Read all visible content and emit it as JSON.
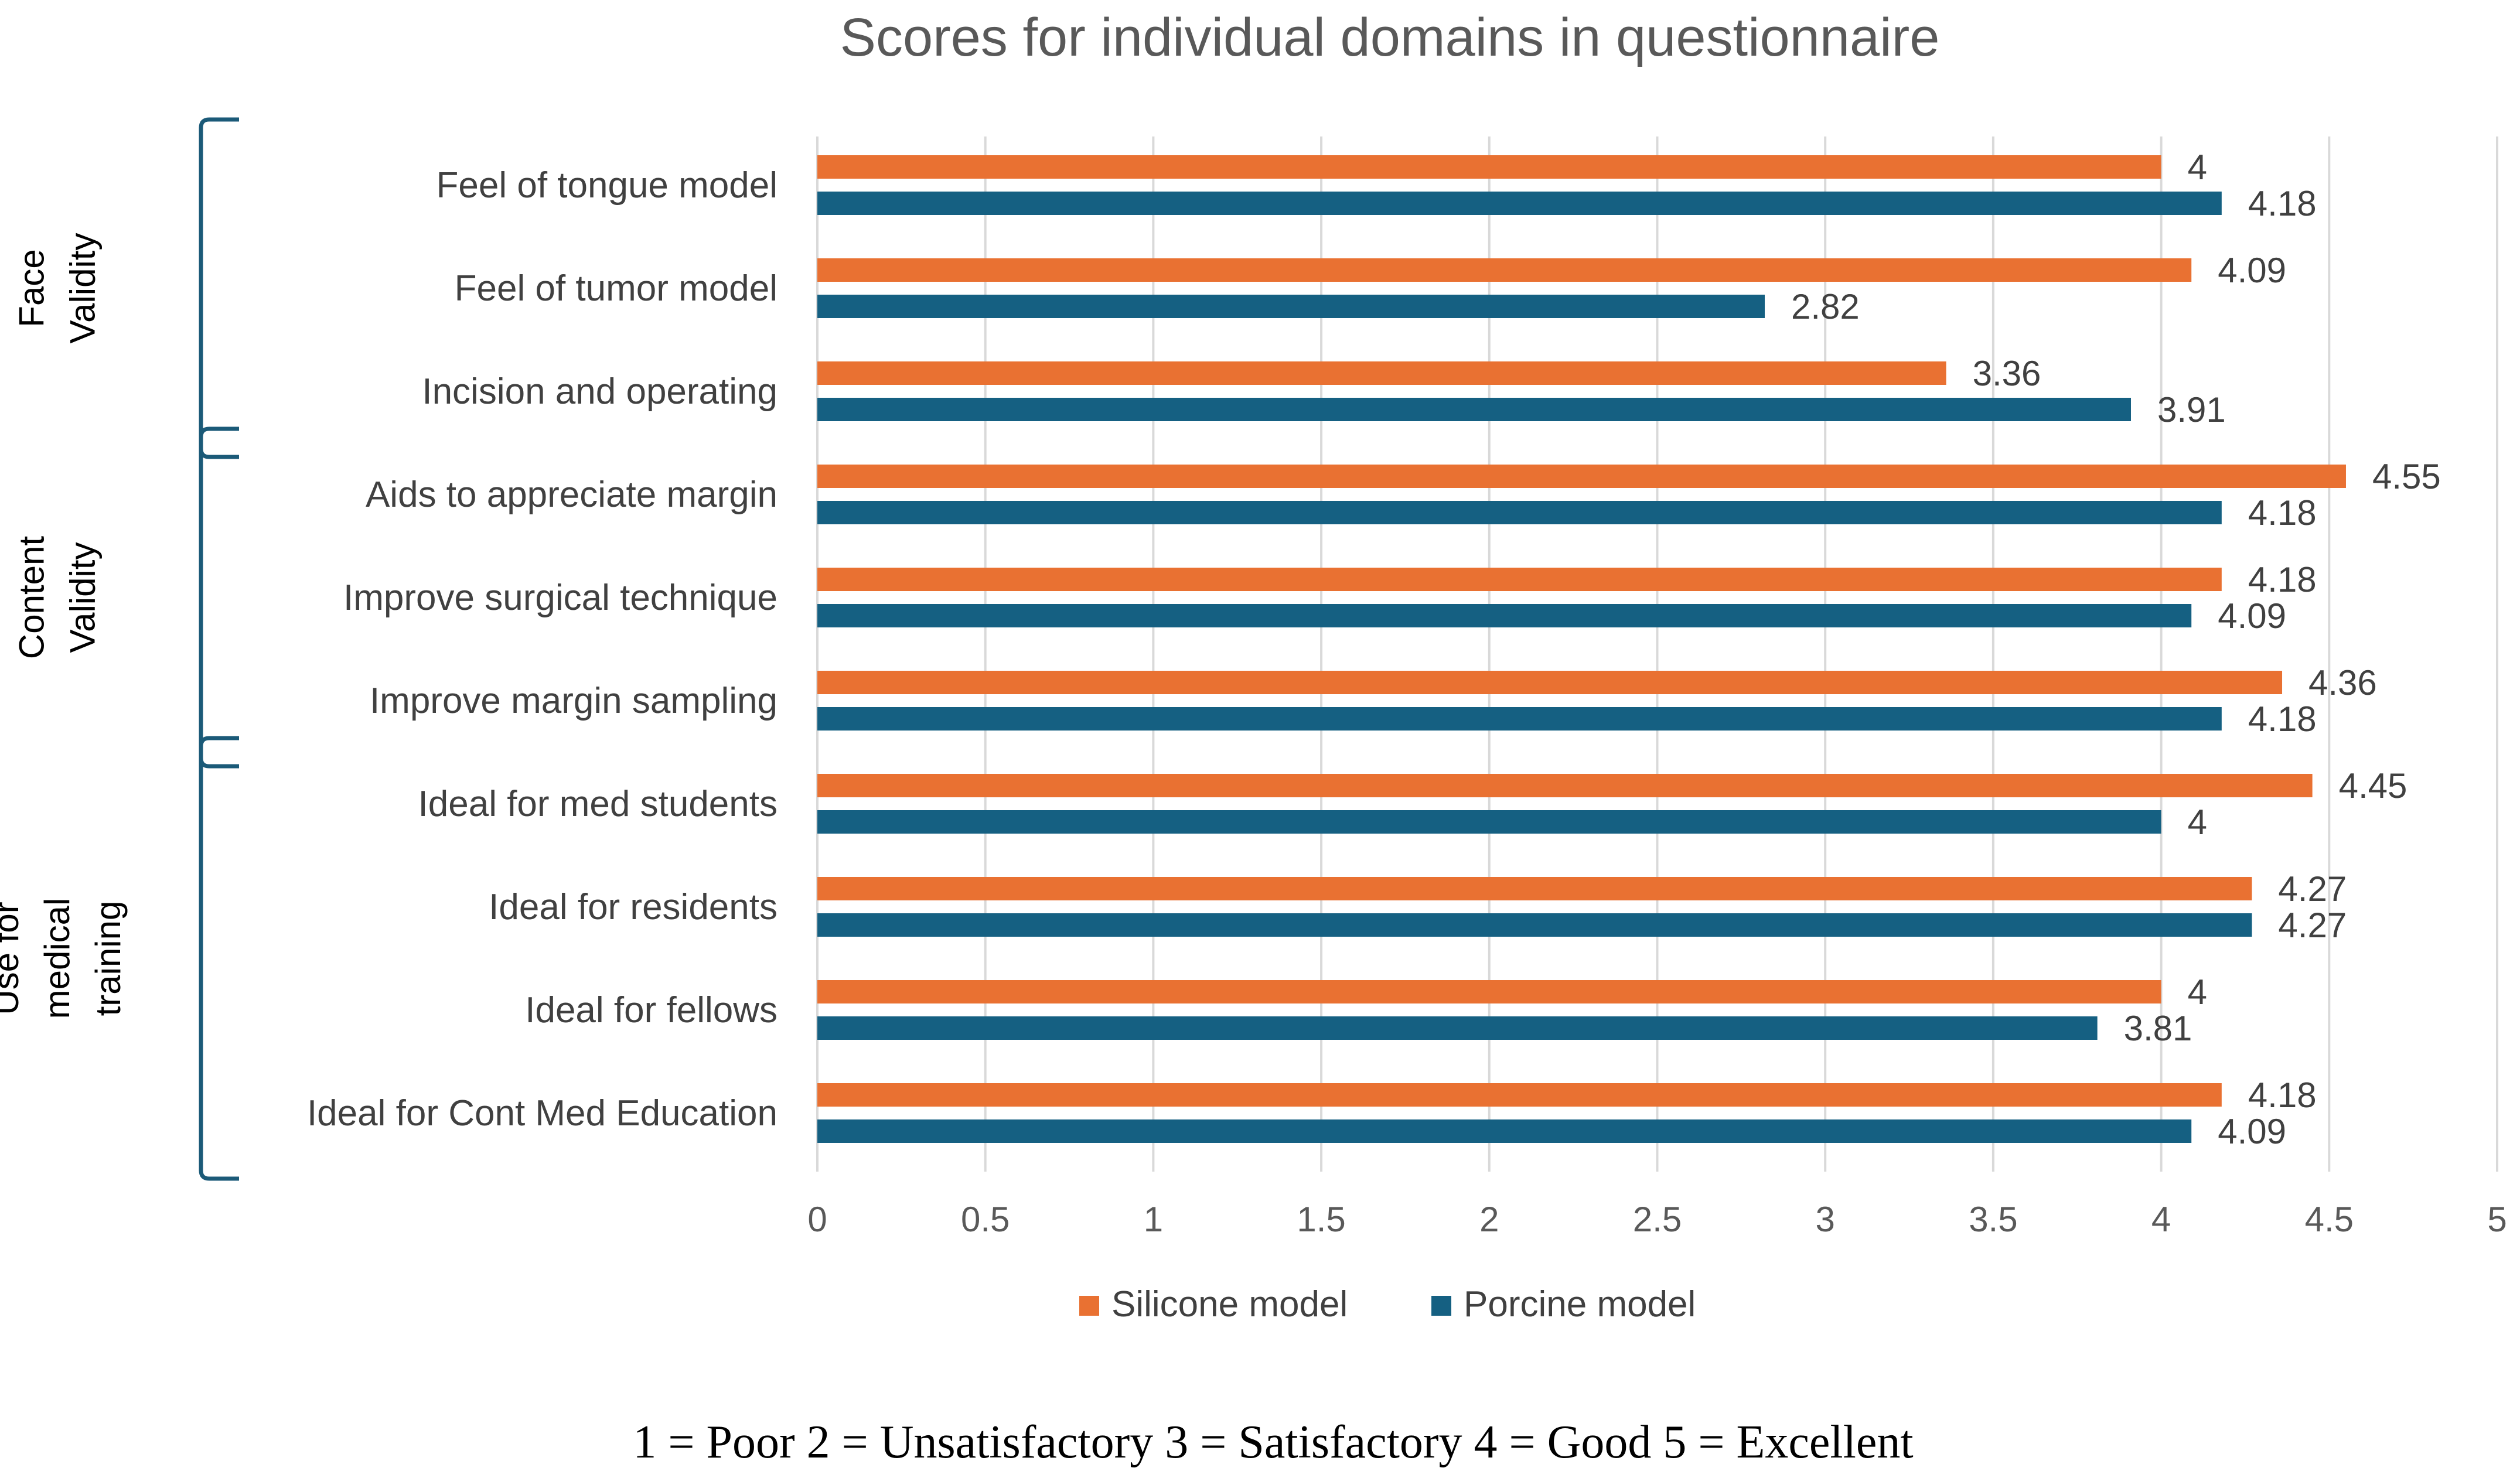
{
  "chart_data": {
    "type": "bar",
    "orientation": "horizontal",
    "title": "Scores for individual domains in questionnaire",
    "categories": [
      "Feel of tongue model",
      "Feel of tumor model",
      "Incision and operating",
      "Aids to appreciate margin",
      "Improve surgical technique",
      "Improve margin sampling",
      "Ideal for med students",
      "Ideal for residents",
      "Ideal for fellows",
      "Ideal for Cont Med Education"
    ],
    "series": [
      {
        "name": "Silicone model",
        "color": "#e97132",
        "values": [
          4,
          4.09,
          3.36,
          4.55,
          4.18,
          4.36,
          4.45,
          4.27,
          4,
          4.18
        ],
        "labels": [
          "4",
          "4.09",
          "3.36",
          "4.55",
          "4.18",
          "4.36",
          "4.45",
          "4.27",
          "4",
          "4.18"
        ]
      },
      {
        "name": "Porcine model",
        "color": "#156082",
        "values": [
          4.18,
          2.82,
          3.91,
          4.18,
          4.09,
          4.18,
          4,
          4.27,
          3.81,
          4.09
        ],
        "labels": [
          "4.18",
          "2.82",
          "3.91",
          "4.18",
          "4.09",
          "4.18",
          "4",
          "4.27",
          "3.81",
          "4.09"
        ]
      }
    ],
    "xlim": [
      0,
      5
    ],
    "xticks": [
      "0",
      "0.5",
      "1",
      "1.5",
      "2",
      "2.5",
      "3",
      "3.5",
      "4",
      "4.5",
      "5"
    ],
    "grid": true,
    "legend_position": "bottom",
    "groups": [
      {
        "lines": [
          "Face",
          "Validity"
        ],
        "categories": [
          0,
          2
        ]
      },
      {
        "lines": [
          "Content",
          "Validity"
        ],
        "categories": [
          3,
          5
        ]
      },
      {
        "lines": [
          "Use for",
          "medical",
          "training"
        ],
        "categories": [
          6,
          9
        ]
      }
    ],
    "footnote": "1 = Poor 2 = Unsatisfactory 3 = Satisfactory 4 = Good 5 = Excellent"
  }
}
